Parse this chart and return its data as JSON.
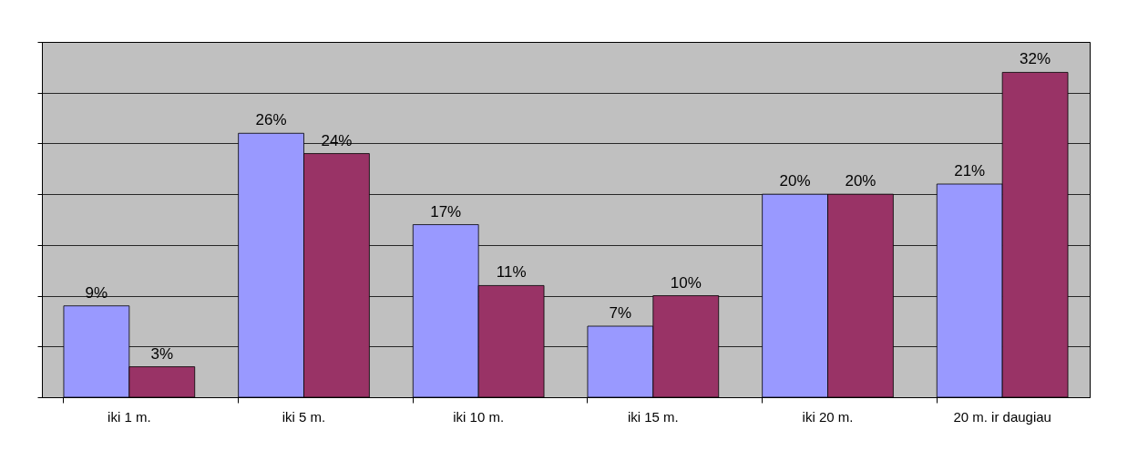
{
  "chart_data": {
    "type": "bar",
    "categories": [
      "iki 1 m.",
      "iki 5 m.",
      "iki 10 m.",
      "iki 15 m.",
      "iki 20 m.",
      "20 m. ir daugiau"
    ],
    "series": [
      {
        "color": "#9999ff",
        "values": [
          9,
          26,
          17,
          7,
          20,
          21
        ],
        "value_labels": [
          "9%",
          "26%",
          "17%",
          "7%",
          "20%",
          "21%"
        ]
      },
      {
        "color": "#993366",
        "values": [
          3,
          24,
          11,
          10,
          20,
          32
        ],
        "value_labels": [
          "3%",
          "24%",
          "11%",
          "10%",
          "20%",
          "32%"
        ]
      }
    ],
    "ylim": [
      0,
      35
    ],
    "yticks": [
      {
        "value": 0,
        "label": null
      },
      {
        "value": 5,
        "label": null
      },
      {
        "value": 10,
        "label": null
      },
      {
        "value": 15,
        "label": null
      },
      {
        "value": 20,
        "label": null
      },
      {
        "value": 25,
        "label": null
      },
      {
        "value": 30,
        "label": null
      },
      {
        "value": 35,
        "label": null
      }
    ],
    "grid": "y",
    "legend": false,
    "tick_labels": "x"
  }
}
